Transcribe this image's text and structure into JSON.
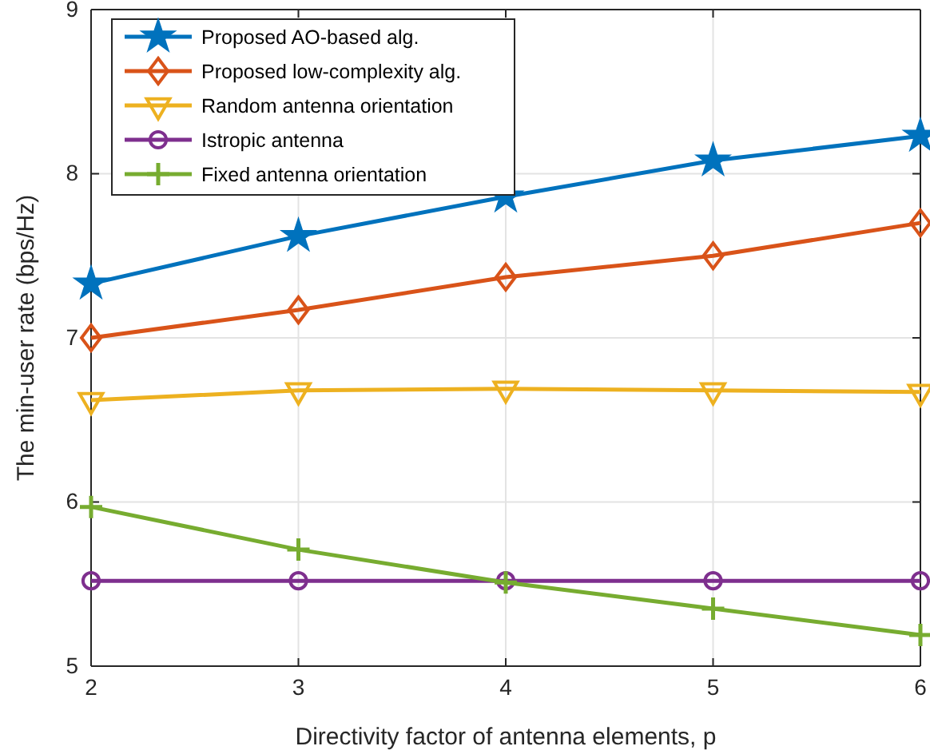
{
  "chart_data": {
    "type": "line",
    "xlabel": "Directivity factor of antenna elements, p",
    "ylabel": "The min-user rate (bps/Hz)",
    "x": [
      2,
      3,
      4,
      5,
      6
    ],
    "xlim": [
      2,
      6
    ],
    "xticks": [
      2,
      3,
      4,
      5,
      6
    ],
    "ylim": [
      5,
      9
    ],
    "yticks": [
      5,
      6,
      7,
      8,
      9
    ],
    "grid": true,
    "legend": "top left",
    "line_style": "solid",
    "series": [
      {
        "name": "Proposed AO-based alg.",
        "color": "#0072bd",
        "marker": "star",
        "values": [
          7.33,
          7.62,
          7.86,
          8.08,
          8.23
        ]
      },
      {
        "name": "Proposed low-complexity alg.",
        "color": "#d95319",
        "marker": "diamond",
        "values": [
          7.0,
          7.17,
          7.37,
          7.5,
          7.7
        ]
      },
      {
        "name": "Random antenna orientation",
        "color": "#edb120",
        "marker": "triangle",
        "values": [
          6.62,
          6.68,
          6.69,
          6.68,
          6.67
        ]
      },
      {
        "name": "Istropic antenna",
        "color": "#7e2f8e",
        "marker": "circle",
        "values": [
          5.52,
          5.52,
          5.52,
          5.52,
          5.52
        ]
      },
      {
        "name": "Fixed antenna orientation",
        "color": "#77ac30",
        "marker": "cross",
        "values": [
          5.97,
          5.71,
          5.51,
          5.35,
          5.19
        ]
      }
    ]
  }
}
